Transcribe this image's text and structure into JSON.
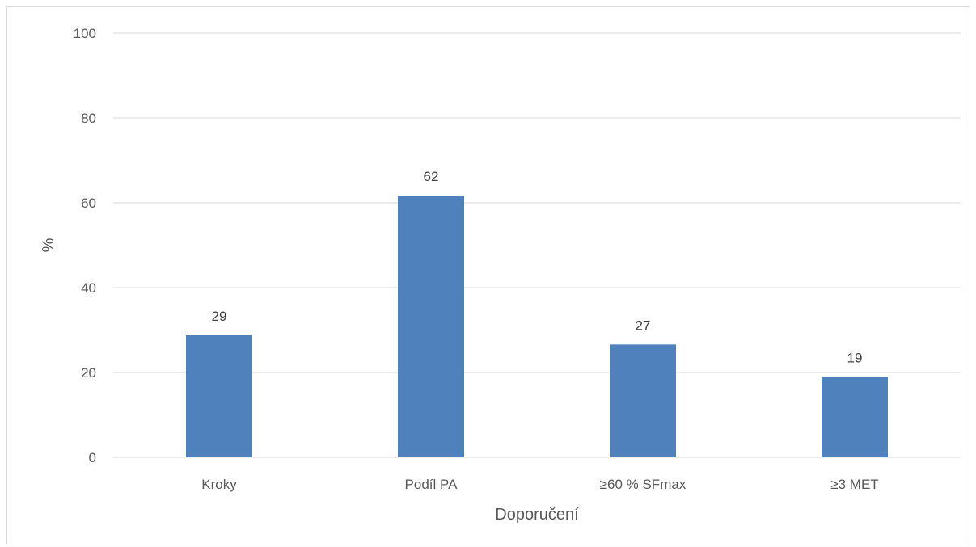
{
  "chart_data": {
    "type": "bar",
    "categories": [
      "Kroky",
      "Podíl PA",
      "≥60 % SFmax",
      "≥3 MET"
    ],
    "values": [
      29,
      62,
      27,
      19
    ],
    "data_labels": [
      "29",
      "62",
      "27",
      "19"
    ],
    "value_estimates": [
      28.8,
      61.7,
      26.6,
      19.0
    ],
    "title": "",
    "xlabel": "Doporučení",
    "ylabel": "%",
    "ylim": [
      0,
      100
    ],
    "yticks": [
      0,
      20,
      40,
      60,
      80,
      100
    ],
    "grid": true,
    "legend": "none",
    "bar_color": "#4f81bd",
    "grid_color": "#d9d9d9"
  }
}
